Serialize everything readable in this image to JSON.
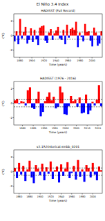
{
  "title": "El Niño 3.4 Index",
  "chart_data": [
    {
      "type": "bar",
      "title": "HADISST (Full Record)",
      "x_label": "Time (years)",
      "y_label": "(°C)",
      "x": [
        1870,
        1873,
        1876,
        1879,
        1882,
        1885,
        1888,
        1891,
        1894,
        1897,
        1900,
        1903,
        1906,
        1909,
        1912,
        1915,
        1918,
        1921,
        1924,
        1927,
        1930,
        1933,
        1936,
        1939,
        1942,
        1945,
        1948,
        1951,
        1954,
        1957,
        1960,
        1963,
        1966,
        1969,
        1972,
        1975,
        1978,
        1981,
        1984,
        1987,
        1990,
        1993,
        1996,
        1999,
        2002,
        2005,
        2008,
        2011,
        2014
      ],
      "values": [
        -0.8,
        0.6,
        -1.2,
        2.3,
        -0.4,
        0.5,
        1.2,
        -1.1,
        -0.6,
        1.0,
        -0.9,
        0.8,
        -0.5,
        -1.3,
        1.1,
        1.3,
        1.4,
        -0.7,
        -1.0,
        0.4,
        0.9,
        -0.6,
        0.3,
        0.7,
        1.2,
        -0.4,
        -0.6,
        0.8,
        -1.2,
        1.5,
        -0.3,
        0.9,
        1.1,
        0.8,
        1.9,
        -1.6,
        0.4,
        -0.2,
        -0.8,
        1.6,
        0.5,
        0.6,
        -0.7,
        -1.5,
        1.1,
        0.4,
        -1.4,
        -1.1,
        0.6
      ],
      "xlim": [
        1870,
        2017
      ],
      "xticks": [
        1880,
        1900,
        1920,
        1940,
        1960,
        1980,
        2000
      ],
      "ylim": [
        -3,
        3
      ],
      "yticks": [
        -2,
        0,
        2
      ],
      "reference_lines": [
        -0.5,
        0.5
      ]
    },
    {
      "type": "bar",
      "title": "HADISST (1976 - 2016)",
      "x_label": "Time (years)",
      "y_label": "(°C)",
      "x": [
        1976,
        1977,
        1978,
        1979,
        1980,
        1981,
        1982,
        1983,
        1984,
        1985,
        1986,
        1987,
        1988,
        1989,
        1990,
        1991,
        1992,
        1993,
        1994,
        1995,
        1996,
        1997,
        1998,
        1999,
        2000,
        2001,
        2002,
        2003,
        2004,
        2005,
        2006,
        2007,
        2008,
        2009,
        2010,
        2011,
        2012,
        2013,
        2014,
        2015,
        2016
      ],
      "values": [
        0.4,
        0.6,
        -0.1,
        0.3,
        0.2,
        -0.3,
        1.8,
        2.2,
        -0.6,
        -0.8,
        0.6,
        1.6,
        -1.8,
        -1.2,
        0.3,
        0.9,
        1.5,
        0.4,
        0.9,
        -0.7,
        -0.5,
        2.3,
        1.5,
        -1.5,
        -1.6,
        -0.4,
        1.0,
        0.3,
        0.5,
        -0.5,
        0.8,
        -1.4,
        -1.3,
        1.2,
        -1.5,
        -1.0,
        0.2,
        -0.3,
        0.5,
        2.5,
        -0.4
      ],
      "xlim": [
        1976,
        2017
      ],
      "xticks": [
        1980,
        1985,
        1990,
        1995,
        2000,
        2005,
        2010,
        2015
      ],
      "ylim": [
        -3,
        3
      ],
      "yticks": [
        -2,
        0,
        2
      ],
      "reference_lines": [
        -0.5,
        0.5
      ]
    },
    {
      "type": "bar",
      "title": "v2.1R.historical.smbb_0201",
      "x_label": "Time (years)",
      "y_label": "(°C)",
      "x": [
        1850,
        1854,
        1858,
        1862,
        1866,
        1870,
        1874,
        1878,
        1882,
        1886,
        1890,
        1894,
        1898,
        1902,
        1906,
        1910,
        1914,
        1918,
        1922,
        1926,
        1930,
        1934,
        1938,
        1942,
        1946,
        1950,
        1954,
        1958,
        1962,
        1966,
        1970,
        1974,
        1978,
        1982,
        1986,
        1990,
        1994,
        1998,
        2002,
        2006,
        2010,
        2014
      ],
      "values": [
        0.5,
        -0.9,
        1.2,
        -0.4,
        0.8,
        -1.3,
        0.3,
        1.5,
        -0.8,
        -1.6,
        0.9,
        0.4,
        -0.5,
        1.1,
        -1.2,
        0.6,
        -0.3,
        1.4,
        -1.0,
        0.2,
        0.7,
        -1.5,
        1.0,
        -0.6,
        0.4,
        1.3,
        -0.9,
        -0.2,
        0.8,
        -1.1,
        1.6,
        -0.7,
        0.3,
        -1.4,
        0.9,
        0.5,
        -0.8,
        1.2,
        -0.4,
        -1.2,
        0.7,
        0.2
      ],
      "xlim": [
        1850,
        2018
      ],
      "xticks": [
        1860,
        1880,
        1900,
        1920,
        1940,
        1960,
        1980,
        2000
      ],
      "ylim": [
        -3,
        3
      ],
      "yticks": [
        -2,
        0,
        2
      ],
      "reference_lines": [
        -0.5,
        0.5
      ]
    }
  ]
}
